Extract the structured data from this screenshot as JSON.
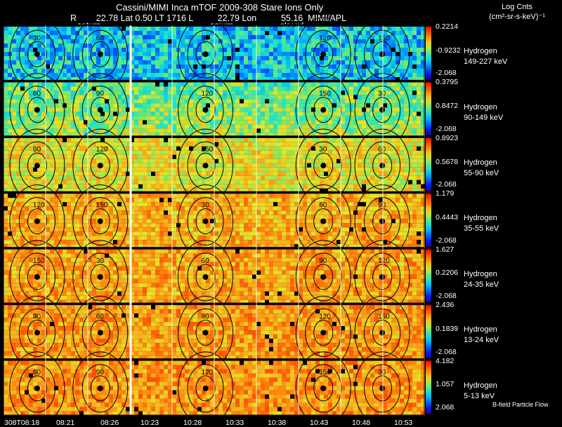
{
  "title": "Cassini/MIMI Inca mTOF  2009-308   Stare    Ions Only",
  "subtitle": "R        22.78 Lat 0.50 LT 1716 L          22.79 Lon          55.16  MIMI/APL",
  "legend_title_1": "Log Cnts",
  "legend_title_2": "(cm²-sr-s-keV)⁻¹",
  "markers": [
    "saturn",
    "saturn",
    "sky-wl"
  ],
  "footer_note": "B-field Particle Flow",
  "chart_data": {
    "type": "heatmap",
    "title": "Cassini/MIMI Inca mTOF  2009-308   Stare    Ions Only",
    "time_ticks": [
      "308T08:18",
      "08:21",
      "08:26",
      "10:23",
      "10:28",
      "10:33",
      "10:38",
      "10:43",
      "10:48",
      "10:53"
    ],
    "contour_labels": [
      "30",
      "60",
      "90",
      "120",
      "150"
    ],
    "rows": [
      {
        "species": "Hydrogen",
        "energy": "149-227 keV",
        "cb_max": "0.2214",
        "cb_mid": "-0.9232",
        "cb_min": "-2.068",
        "level": 0.28
      },
      {
        "species": "Hydrogen",
        "energy": "90-149 keV",
        "cb_max": "0.3795",
        "cb_mid": "0.8472",
        "cb_min": "-2.068",
        "level": 0.48
      },
      {
        "species": "Hydrogen",
        "energy": "55-90 keV",
        "cb_max": "0.8923",
        "cb_mid": "0.5678",
        "cb_min": "-2.068",
        "level": 0.66
      },
      {
        "species": "Hydrogen",
        "energy": "35-55 keV",
        "cb_max": "1.179",
        "cb_mid": "0.4443",
        "cb_min": "-2.068",
        "level": 0.74
      },
      {
        "species": "Hydrogen",
        "energy": "24-35 keV",
        "cb_max": "1.627",
        "cb_mid": "0.2206",
        "cb_min": "-2.068",
        "level": 0.76
      },
      {
        "species": "Hydrogen",
        "energy": "13-24 keV",
        "cb_max": "2.436",
        "cb_mid": "0.1839",
        "cb_min": "-2.068",
        "level": 0.77
      },
      {
        "species": "Hydrogen",
        "energy": "5-13 keV",
        "cb_max": "4.182",
        "cb_mid": "1.057",
        "cb_min": "2.068",
        "level": 0.78
      }
    ]
  }
}
